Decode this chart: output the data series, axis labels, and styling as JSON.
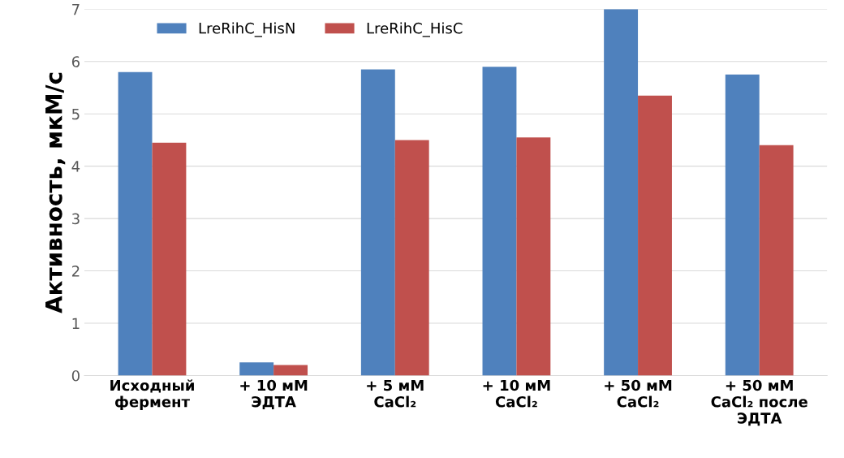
{
  "chart_data": {
    "type": "bar",
    "ylabel": "Активность, мкМ/с",
    "categories": [
      "Исходный\nфермент",
      "+ 10 мМ\nЭДТА",
      "+ 5 мМ\nCaCl₂",
      "+ 10 мМ\nCaCl₂",
      "+ 50 мМ\nCaCl₂",
      "+ 50 мМ\nCaCl₂ после\nЭДТА"
    ],
    "series": [
      {
        "name": "LreRihC_HisN",
        "color": "#4f81bd",
        "values": [
          5.8,
          0.25,
          5.85,
          5.9,
          7.0,
          5.75
        ]
      },
      {
        "name": "LreRihC_HisC",
        "color": "#c0504d",
        "values": [
          4.45,
          0.2,
          4.5,
          4.55,
          5.35,
          4.4
        ]
      }
    ],
    "ylim": [
      0,
      7
    ],
    "yticks": [
      0,
      1,
      2,
      3,
      4,
      5,
      6,
      7
    ],
    "grid": "y",
    "legend": "top left"
  }
}
